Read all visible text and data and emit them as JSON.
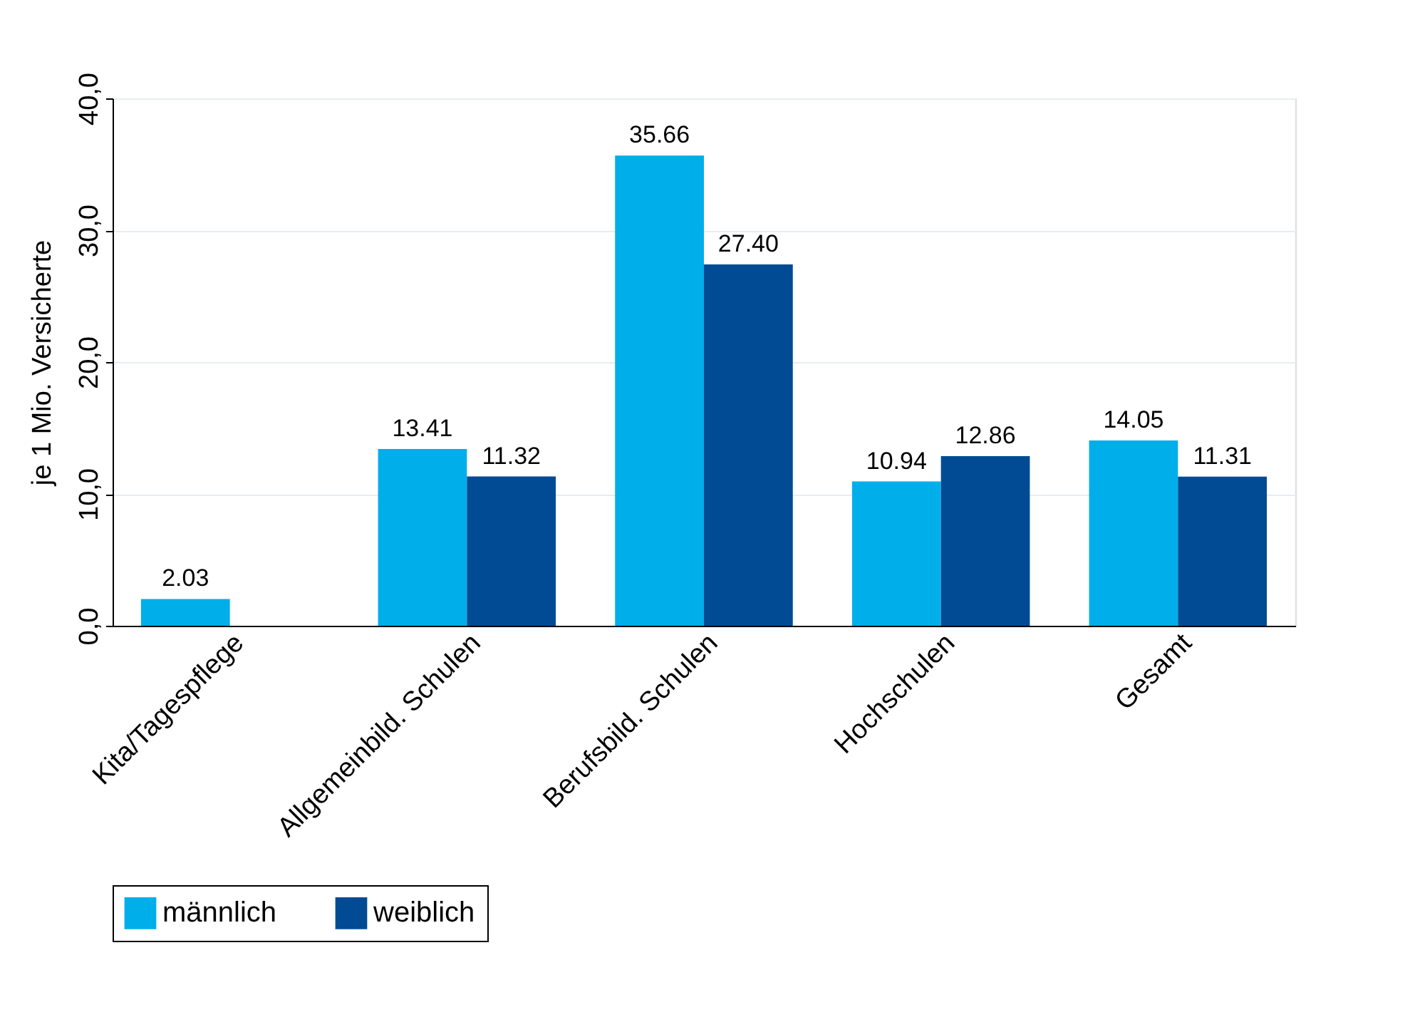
{
  "chart_data": {
    "type": "bar",
    "ylabel": "je 1 Mio. Versicherte",
    "categories": [
      "Kita/Tagespflege",
      "Allgemeinbild. Schulen",
      "Berufsbild. Schulen",
      "Hochschulen",
      "Gesamt"
    ],
    "series": [
      {
        "name": "männlich",
        "color": "#00aeea",
        "values": [
          2.03,
          13.41,
          35.66,
          10.94,
          14.05
        ],
        "value_labels": [
          "2.03",
          "13.41",
          "35.66",
          "10.94",
          "14.05"
        ]
      },
      {
        "name": "weiblich",
        "color": "#004b93",
        "values": [
          null,
          11.32,
          27.4,
          12.86,
          11.31
        ],
        "value_labels": [
          null,
          "11.32",
          "27.40",
          "12.86",
          "11.31"
        ]
      }
    ],
    "ylim": [
      0,
      40
    ],
    "yticks": [
      {
        "value": 0,
        "label": "0,0"
      },
      {
        "value": 10,
        "label": "10,0"
      },
      {
        "value": 20,
        "label": "20,0"
      },
      {
        "value": 30,
        "label": "30,0"
      },
      {
        "value": 40,
        "label": "40,0"
      }
    ],
    "grid": "y",
    "legend": "bottom"
  }
}
